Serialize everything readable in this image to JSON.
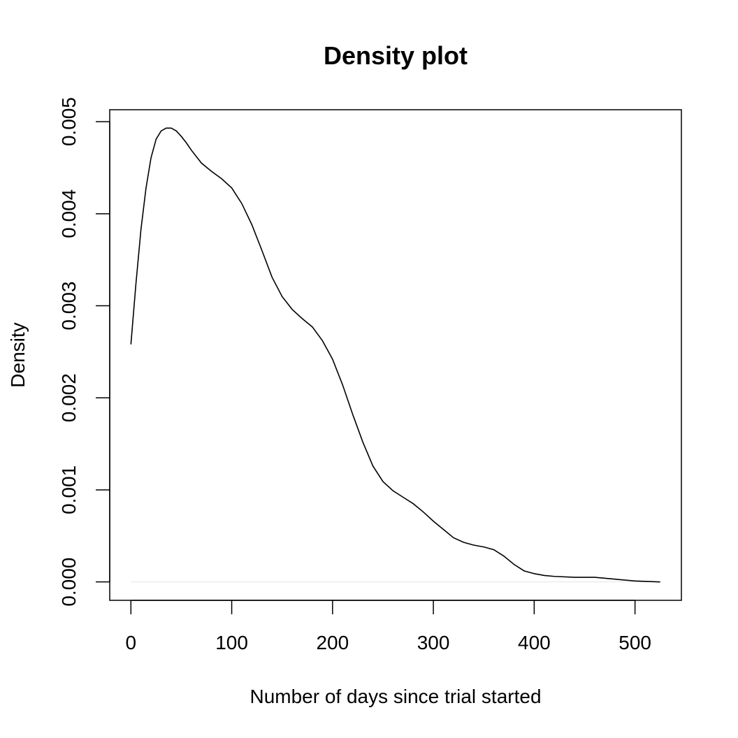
{
  "chart_data": {
    "type": "line",
    "title": "Density plot",
    "xlabel": "Number of days since trial started",
    "ylabel": "Density",
    "xlim": [
      -21,
      546
    ],
    "ylim": [
      -0.0002,
      0.00513
    ],
    "x_ticks": [
      0,
      100,
      200,
      300,
      400,
      500
    ],
    "x_tick_labels": [
      "0",
      "100",
      "200",
      "300",
      "400",
      "500"
    ],
    "y_ticks": [
      0.0,
      0.001,
      0.002,
      0.003,
      0.004,
      0.005
    ],
    "y_tick_labels": [
      "0.000",
      "0.001",
      "0.002",
      "0.003",
      "0.004",
      "0.005"
    ],
    "grid": false,
    "zero_baseline": true,
    "colors": {
      "line": "#000000",
      "baseline": "#e5e5e5",
      "frame": "#000000"
    },
    "series": [
      {
        "x": [
          0,
          5,
          10,
          15,
          20,
          25,
          30,
          35,
          40,
          45,
          50,
          55,
          60,
          70,
          80,
          90,
          100,
          110,
          120,
          130,
          140,
          150,
          160,
          170,
          180,
          190,
          200,
          210,
          220,
          230,
          240,
          250,
          260,
          270,
          280,
          290,
          300,
          310,
          320,
          330,
          340,
          350,
          360,
          370,
          380,
          390,
          400,
          410,
          420,
          440,
          460,
          480,
          500,
          525
        ],
        "y": [
          0.00258,
          0.00324,
          0.00383,
          0.00428,
          0.00461,
          0.00481,
          0.0049,
          0.00493,
          0.00493,
          0.0049,
          0.00484,
          0.00477,
          0.00469,
          0.00455,
          0.00446,
          0.00438,
          0.00428,
          0.00411,
          0.00388,
          0.0036,
          0.00331,
          0.0031,
          0.00296,
          0.00286,
          0.00277,
          0.00262,
          0.00242,
          0.00214,
          0.00182,
          0.00152,
          0.00126,
          0.00109,
          0.00099,
          0.00092,
          0.00085,
          0.00076,
          0.00066,
          0.00057,
          0.00048,
          0.00043,
          0.0004,
          0.00038,
          0.00035,
          0.00028,
          0.00019,
          0.00012,
          9e-05,
          7e-05,
          6e-05,
          5e-05,
          5e-05,
          3e-05,
          1e-05,
          0.0
        ]
      }
    ]
  }
}
